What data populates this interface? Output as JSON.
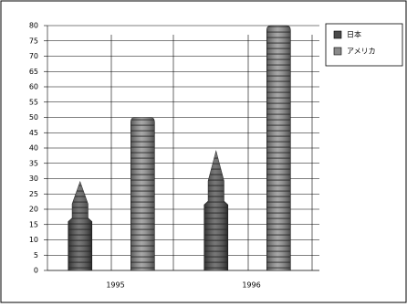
{
  "chart_data": {
    "type": "bar",
    "categories": [
      "1995",
      "1996"
    ],
    "series": [
      {
        "name": "日本",
        "color": "#4a4a4a",
        "values": [
          29,
          39
        ]
      },
      {
        "name": "アメリカ",
        "color": "#8a8a8a",
        "values": [
          50,
          80
        ]
      }
    ],
    "ylim": [
      0,
      80
    ],
    "yticks": [
      0,
      5,
      10,
      15,
      20,
      25,
      30,
      35,
      40,
      45,
      50,
      55,
      60,
      65,
      70,
      75,
      80
    ],
    "grid": true,
    "legend": "top-right"
  }
}
